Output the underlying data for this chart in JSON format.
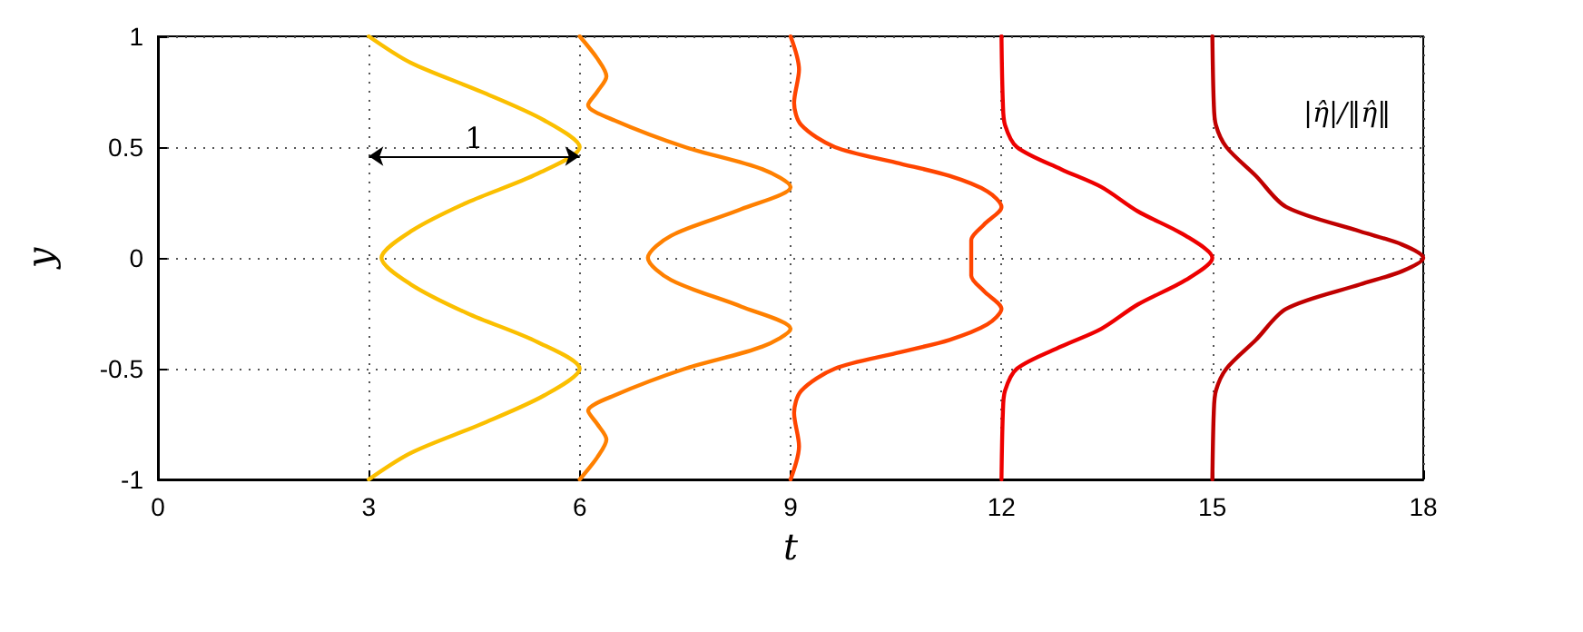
{
  "chart_data": {
    "type": "line",
    "xlabel": "t",
    "ylabel": "y",
    "xlim": [
      0,
      18
    ],
    "xticks": [
      0,
      3,
      6,
      9,
      12,
      15,
      18
    ],
    "ylim": [
      -1,
      1
    ],
    "yticks": [
      -1,
      -0.5,
      0,
      0.5,
      1
    ],
    "grid": true,
    "annotations": [
      "1",
      "|η̂|/‖η̂‖"
    ],
    "series": [
      {
        "color": "#fbbf00",
        "x": [
          3.0,
          3.6,
          4.6,
          5.5,
          6.0,
          5.4,
          4.4,
          3.6,
          3.18,
          3.6,
          4.4,
          5.4,
          6.0,
          5.5,
          4.6,
          3.6,
          3.0
        ],
        "values": [
          1,
          0.88,
          0.75,
          0.62,
          0.5,
          0.38,
          0.25,
          0.12,
          0,
          -0.12,
          -0.25,
          -0.38,
          -0.5,
          -0.62,
          -0.75,
          -0.88,
          -1
        ]
      },
      {
        "color": "#ff8000",
        "x": [
          6.0,
          6.25,
          6.38,
          6.25,
          6.12,
          6.5,
          7.5,
          8.6,
          9.0,
          8.3,
          7.3,
          6.97,
          7.3,
          8.3,
          9.0,
          8.6,
          7.5,
          6.5,
          6.12,
          6.25,
          6.38,
          6.25,
          6.0
        ],
        "values": [
          1,
          0.9,
          0.82,
          0.75,
          0.69,
          0.62,
          0.5,
          0.4,
          0.32,
          0.22,
          0.1,
          0,
          -0.1,
          -0.22,
          -0.32,
          -0.4,
          -0.5,
          -0.62,
          -0.69,
          -0.75,
          -0.82,
          -0.9,
          -1
        ]
      },
      {
        "color": "#ff4500",
        "x": [
          9.0,
          9.12,
          9.05,
          9.15,
          9.63,
          10.5,
          11.26,
          11.8,
          12.0,
          11.75,
          11.57,
          11.57,
          11.57,
          11.75,
          12.0,
          11.8,
          11.26,
          10.5,
          9.63,
          9.15,
          9.05,
          9.12,
          9.0
        ],
        "values": [
          1,
          0.85,
          0.7,
          0.6,
          0.5,
          0.43,
          0.37,
          0.3,
          0.23,
          0.15,
          0.08,
          0,
          -0.08,
          -0.15,
          -0.23,
          -0.3,
          -0.37,
          -0.43,
          -0.5,
          -0.6,
          -0.7,
          -0.85,
          -1
        ]
      },
      {
        "color": "#ee0000",
        "x": [
          12.0,
          12.02,
          12.05,
          12.22,
          12.85,
          13.42,
          13.94,
          14.62,
          15.0,
          14.62,
          13.94,
          13.42,
          12.85,
          12.22,
          12.05,
          12.02,
          12.0
        ],
        "values": [
          1,
          0.7,
          0.6,
          0.5,
          0.4,
          0.32,
          0.21,
          0.1,
          0,
          -0.1,
          -0.21,
          -0.32,
          -0.4,
          -0.5,
          -0.6,
          -0.7,
          -1
        ]
      },
      {
        "color": "#c00000",
        "x": [
          15.0,
          15.02,
          15.05,
          15.2,
          15.62,
          16.05,
          17.1,
          17.7,
          18.0,
          17.7,
          17.1,
          16.05,
          15.62,
          15.2,
          15.05,
          15.02,
          15.0
        ],
        "values": [
          1,
          0.7,
          0.6,
          0.5,
          0.37,
          0.23,
          0.12,
          0.06,
          0,
          -0.06,
          -0.12,
          -0.23,
          -0.37,
          -0.5,
          -0.6,
          -0.7,
          -1
        ]
      }
    ]
  }
}
